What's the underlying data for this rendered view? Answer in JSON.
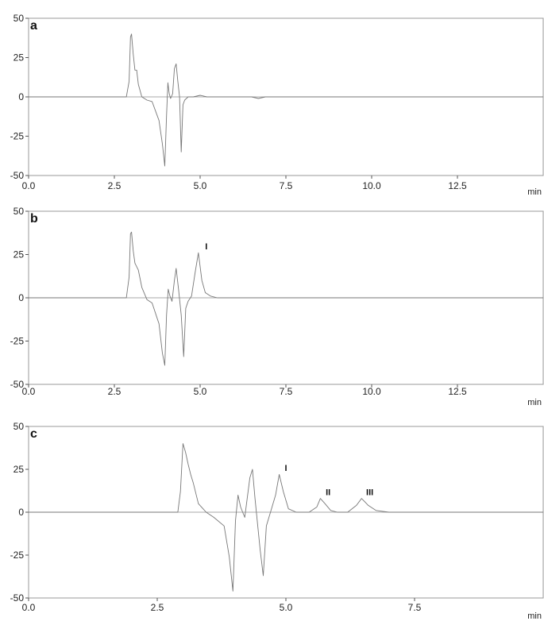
{
  "chart_data": [
    {
      "id": "a",
      "type": "line",
      "panel_label": "a",
      "xlabel": "min",
      "ylabel": "",
      "xlim": [
        0,
        15
      ],
      "ylim": [
        -50,
        50
      ],
      "xticks": [
        0.0,
        2.5,
        5.0,
        7.5,
        10.0,
        12.5
      ],
      "xtick_labels": [
        "0.0",
        "2.5",
        "5.0",
        "7.5",
        "10.0",
        "12.5"
      ],
      "yticks": [
        50,
        25,
        0,
        -25,
        -50
      ],
      "ytick_labels": [
        "50",
        "25",
        "0",
        "-25",
        "-50"
      ],
      "peak_labels": [],
      "series": [
        {
          "x": [
            0,
            2.85,
            2.93,
            2.97,
            3.0,
            3.05,
            3.1,
            3.15,
            3.2,
            3.3,
            3.45,
            3.6,
            3.8,
            3.9,
            3.97,
            4.02,
            4.06,
            4.1,
            4.14,
            4.2,
            4.25,
            4.3,
            4.35,
            4.4,
            4.45,
            4.5,
            4.55,
            4.65,
            4.8,
            5.0,
            5.2,
            6.5,
            6.7,
            6.9,
            15
          ],
          "y": [
            0,
            0,
            10,
            38,
            40,
            27,
            17,
            17,
            8,
            0,
            -2,
            -3,
            -15,
            -30,
            -44,
            -12,
            9,
            2,
            -1,
            2,
            18,
            21,
            10,
            0,
            -35,
            -5,
            -2,
            0,
            0,
            1,
            0,
            0,
            -1,
            0,
            0
          ]
        }
      ]
    },
    {
      "id": "b",
      "type": "line",
      "panel_label": "b",
      "xlabel": "min",
      "ylabel": "",
      "xlim": [
        0,
        15
      ],
      "ylim": [
        -50,
        50
      ],
      "xticks": [
        0.0,
        2.5,
        5.0,
        7.5,
        10.0,
        12.5
      ],
      "xtick_labels": [
        "0.0",
        "2.5",
        "5.0",
        "7.5",
        "10.0",
        "12.5"
      ],
      "yticks": [
        50,
        25,
        0,
        -25,
        -50
      ],
      "ytick_labels": [
        "50",
        "25",
        "0",
        "-25",
        "-50"
      ],
      "peak_labels": [
        {
          "text": "I",
          "x": 5.18,
          "y": 28
        }
      ],
      "series": [
        {
          "x": [
            0,
            2.85,
            2.93,
            2.97,
            3.0,
            3.05,
            3.1,
            3.2,
            3.3,
            3.45,
            3.6,
            3.8,
            3.9,
            3.97,
            4.02,
            4.07,
            4.12,
            4.18,
            4.25,
            4.3,
            4.37,
            4.45,
            4.52,
            4.58,
            4.65,
            4.75,
            4.85,
            4.95,
            5.05,
            5.15,
            5.3,
            5.5,
            15
          ],
          "y": [
            0,
            0,
            12,
            37,
            38,
            27,
            20,
            16,
            6,
            -1,
            -3,
            -15,
            -32,
            -39,
            -10,
            5,
            1,
            -2,
            10,
            17,
            5,
            -10,
            -34,
            -6,
            -2,
            1,
            14,
            26,
            10,
            3,
            1,
            0,
            0
          ]
        }
      ]
    },
    {
      "id": "c",
      "type": "line",
      "panel_label": "c",
      "xlabel": "min",
      "ylabel": "",
      "xlim": [
        0,
        10
      ],
      "ylim": [
        -50,
        50
      ],
      "xticks": [
        0.0,
        2.5,
        5.0,
        7.5
      ],
      "xtick_labels": [
        "0.0",
        "2.5",
        "5.0",
        "7.5"
      ],
      "yticks": [
        50,
        25,
        0,
        -25,
        -50
      ],
      "ytick_labels": [
        "50",
        "25",
        "0",
        "-25",
        "-50"
      ],
      "peak_labels": [
        {
          "text": "I",
          "x": 5.0,
          "y": 24
        },
        {
          "text": "II",
          "x": 5.82,
          "y": 10
        },
        {
          "text": "III",
          "x": 6.63,
          "y": 10
        }
      ],
      "series": [
        {
          "x": [
            0,
            2.9,
            2.95,
            3.0,
            3.05,
            3.1,
            3.15,
            3.2,
            3.3,
            3.45,
            3.6,
            3.8,
            3.9,
            3.97,
            4.02,
            4.07,
            4.12,
            4.2,
            4.3,
            4.35,
            4.4,
            4.5,
            4.56,
            4.62,
            4.7,
            4.8,
            4.87,
            4.95,
            5.05,
            5.2,
            5.45,
            5.6,
            5.67,
            5.76,
            5.87,
            6.0,
            6.2,
            6.37,
            6.47,
            6.6,
            6.75,
            7.0,
            10
          ],
          "y": [
            0,
            0,
            12,
            40,
            35,
            28,
            22,
            17,
            5,
            0,
            -3,
            -8,
            -26,
            -46,
            -5,
            10,
            3,
            -3,
            20,
            25,
            8,
            -22,
            -37,
            -8,
            0,
            10,
            22,
            12,
            2,
            0,
            0,
            3,
            8,
            5,
            1,
            0,
            0,
            4,
            8,
            4,
            1,
            0,
            0
          ]
        }
      ]
    }
  ]
}
